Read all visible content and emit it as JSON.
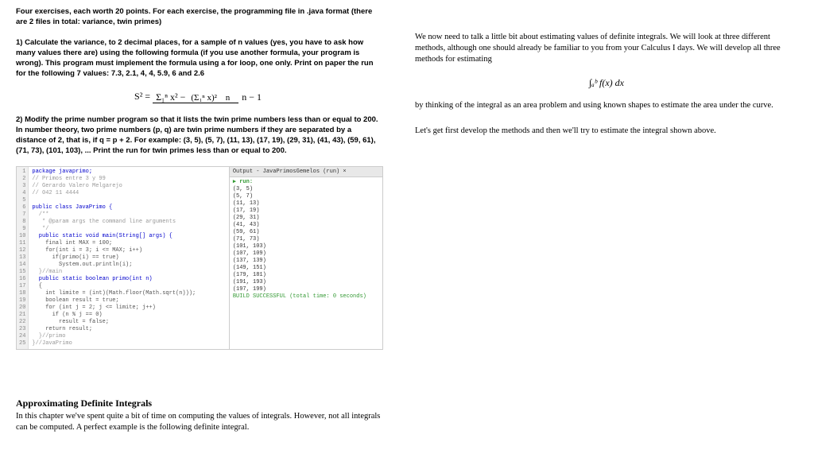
{
  "left": {
    "intro": "Four exercises, each worth 20 points. For each exercise, the programming file in .java format (there are 2 files in total: variance, twin primes)",
    "q1": "1) Calculate the variance, to 2 decimal places, for a sample of n values (yes, you have to ask how many values there are) using the following formula (if you use another formula, your program is wrong). This program must implement the formula using a for loop, one only. Print on paper the run for the following 7 values: 7.3, 2.1, 4, 4, 5.9, 6 and 2.6",
    "formula_label": "S² =",
    "formula_num_left": "Σ₁ⁿ x² −",
    "formula_inner_top": "(Σ₁ⁿ x)²",
    "formula_inner_bot": "n",
    "formula_den": "n − 1",
    "q2": "2) Modify the prime number program so that it lists the twin prime numbers less than or equal to 200. In number theory, two prime numbers (p, q) are twin prime numbers if they are separated by a distance of 2, that is, if q = p + 2. For example: (3, 5), (5, 7), (11, 13), (17, 19), (29, 31), (41, 43), (59, 61), (71, 73), (101, 103), ... Print the run for twin primes less than or equal to 200.",
    "code": {
      "lines": [
        {
          "n": 1,
          "t": "package javaprimo;",
          "cls": "kw"
        },
        {
          "n": 2,
          "t": "// Primos entre 3 y 99",
          "cls": "cm"
        },
        {
          "n": 3,
          "t": "// Gerardo Valero Melgarejo",
          "cls": "cm"
        },
        {
          "n": 4,
          "t": "// 042 11 4444",
          "cls": "cm"
        },
        {
          "n": 5,
          "t": "",
          "cls": ""
        },
        {
          "n": 6,
          "t": "public class JavaPrimo {",
          "cls": "kw"
        },
        {
          "n": 7,
          "t": "  /**",
          "cls": "cm"
        },
        {
          "n": 8,
          "t": "   * @param args the command line arguments",
          "cls": "cm"
        },
        {
          "n": 9,
          "t": "   */",
          "cls": "cm"
        },
        {
          "n": 10,
          "t": "  public static void main(String[] args) {",
          "cls": "kw"
        },
        {
          "n": 11,
          "t": "    final int MAX = 100;",
          "cls": ""
        },
        {
          "n": 12,
          "t": "    for(int i = 3; i <= MAX; i++)",
          "cls": ""
        },
        {
          "n": 13,
          "t": "      if(primo(i) == true)",
          "cls": ""
        },
        {
          "n": 14,
          "t": "        System.out.println(i);",
          "cls": ""
        },
        {
          "n": 15,
          "t": "  }//main",
          "cls": "cm"
        },
        {
          "n": 16,
          "t": "  public static boolean primo(int n)",
          "cls": "kw"
        },
        {
          "n": 17,
          "t": "  {",
          "cls": ""
        },
        {
          "n": 18,
          "t": "    int limite = (int)(Math.floor(Math.sqrt(n)));",
          "cls": ""
        },
        {
          "n": 19,
          "t": "    boolean result = true;",
          "cls": ""
        },
        {
          "n": 20,
          "t": "    for (int j = 2; j <= limite; j++)",
          "cls": ""
        },
        {
          "n": 21,
          "t": "      if (n % j == 0)",
          "cls": ""
        },
        {
          "n": 22,
          "t": "        result = false;",
          "cls": ""
        },
        {
          "n": 23,
          "t": "    return result;",
          "cls": ""
        },
        {
          "n": 24,
          "t": "  }//primo",
          "cls": "cm"
        },
        {
          "n": 25,
          "t": "}//JavaPrimo",
          "cls": "cm"
        }
      ],
      "output_title": "Output - JavaPrimosGemelos (run)  ×",
      "run_label": "run:",
      "pairs": [
        "(3, 5)",
        "(5, 7)",
        "(11, 13)",
        "(17, 19)",
        "(29, 31)",
        "(41, 43)",
        "(59, 61)",
        "(71, 73)",
        "(101, 103)",
        "(107, 109)",
        "(137, 139)",
        "(149, 151)",
        "(179, 181)",
        "(191, 193)",
        "(197, 199)"
      ],
      "build": "BUILD SUCCESSFUL (total time: 0 seconds)"
    },
    "approx_heading": "Approximating Definite Integrals",
    "approx_body": "In this chapter we've spent quite a bit of time on computing the values of integrals. However, not all integrals can be computed. A perfect example is the following definite integral."
  },
  "right": {
    "p1": "We now need to talk a little bit about estimating values of definite integrals. We will look at three different methods, although one should already be familiar to you from your Calculus I days. We will develop all three methods for estimating",
    "integral": "∫ₐᵇ f(x) dx",
    "p2": "by thinking of the integral as an area problem and using known shapes to estimate the area under the curve.",
    "p3": "Let's get first develop the methods and then we'll try to estimate the integral shown above."
  }
}
